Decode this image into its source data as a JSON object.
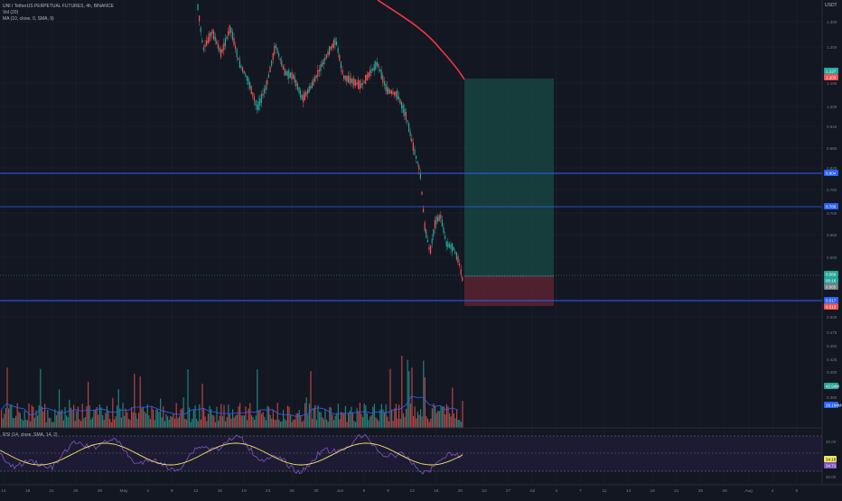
{
  "header": {
    "symbol_line": "UNI / TetherUS PERPETUAL FUTURES, 4h, BINANCE",
    "indicator_1": "Vol (20)",
    "indicator_2": "MA (10, close, 0, SMA, 9)",
    "currency": "USDT"
  },
  "rsi": {
    "legend": "RSI (14, close, SMA, 14, 2)",
    "badge_rsi": "34.18",
    "badge_ma": "34.71",
    "levels": [
      "40.00",
      "30.00"
    ]
  },
  "price_axis": {
    "ticks": [
      "1.300",
      "1.200",
      "1.100",
      "1.000",
      "0.940",
      "0.880",
      "0.820",
      "0.760",
      "0.700",
      "0.650",
      "0.600",
      "0.550",
      "0.500",
      "0.475",
      "0.450",
      "0.425",
      "0.400",
      "0.375",
      "0.350"
    ],
    "labels": [
      {
        "id": "ma-price",
        "text": "1.227",
        "color": "#26a69a"
      },
      {
        "id": "ma-price-2",
        "text": "1.203",
        "color": "#ef5350"
      },
      {
        "id": "hline-1",
        "text": "0.904",
        "color": "#2962ff"
      },
      {
        "id": "hline-2",
        "text": "0.786",
        "color": "#2962ff"
      },
      {
        "id": "last-price",
        "text": "0.569",
        "color": "#26a69a"
      },
      {
        "id": "countdown",
        "text": "00:16",
        "color": "#26a69a"
      },
      {
        "id": "entry",
        "text": "0.565",
        "color": "#787b86"
      },
      {
        "id": "hline-3",
        "text": "0.517",
        "color": "#2962ff"
      },
      {
        "id": "stop",
        "text": "0.513",
        "color": "#ef5350"
      },
      {
        "id": "volume",
        "text": "42.94M",
        "color": "#26a69a"
      },
      {
        "id": "vol-ma",
        "text": "29.104M",
        "color": "#2962ff"
      }
    ]
  },
  "time_axis": {
    "ticks": [
      "14",
      "18",
      "21",
      "25",
      "28",
      "May",
      "4",
      "9",
      "12",
      "16",
      "19",
      "23",
      "26",
      "30",
      "Jun",
      "6",
      "9",
      "13",
      "16",
      "20",
      "23",
      "27",
      "Jul",
      "4",
      "7",
      "11",
      "14",
      "18",
      "21",
      "25",
      "28",
      "Aug",
      "4",
      "8"
    ]
  },
  "chart_data": {
    "type": "candlestick",
    "symbol": "UNI / TetherUS PERPETUAL FUTURES",
    "interval": "4h",
    "exchange": "BINANCE",
    "currency": "USDT",
    "price_axis_ticks": [
      1.3,
      1.2,
      1.1,
      1.0,
      0.94,
      0.88,
      0.82,
      0.76,
      0.7,
      0.65,
      0.6,
      0.55,
      0.5
    ],
    "horizontal_lines": [
      0.904,
      0.786,
      0.517
    ],
    "last_price": 0.569,
    "moving_average_label": 1.227,
    "position": {
      "direction": "long",
      "entry": 0.565,
      "stop": 0.513,
      "target": 1.213
    },
    "indicators": [
      "Vol (20)",
      "MA (10, close, 0, SMA, 9)",
      "RSI (14, close, SMA, 14, 2)"
    ],
    "colors": {
      "up": "#26a69a",
      "down": "#ef5350",
      "ma": "#f23645",
      "hline": "#2962ff",
      "rsi": "#7e57c2",
      "rsi_ma": "#f5e663"
    }
  }
}
